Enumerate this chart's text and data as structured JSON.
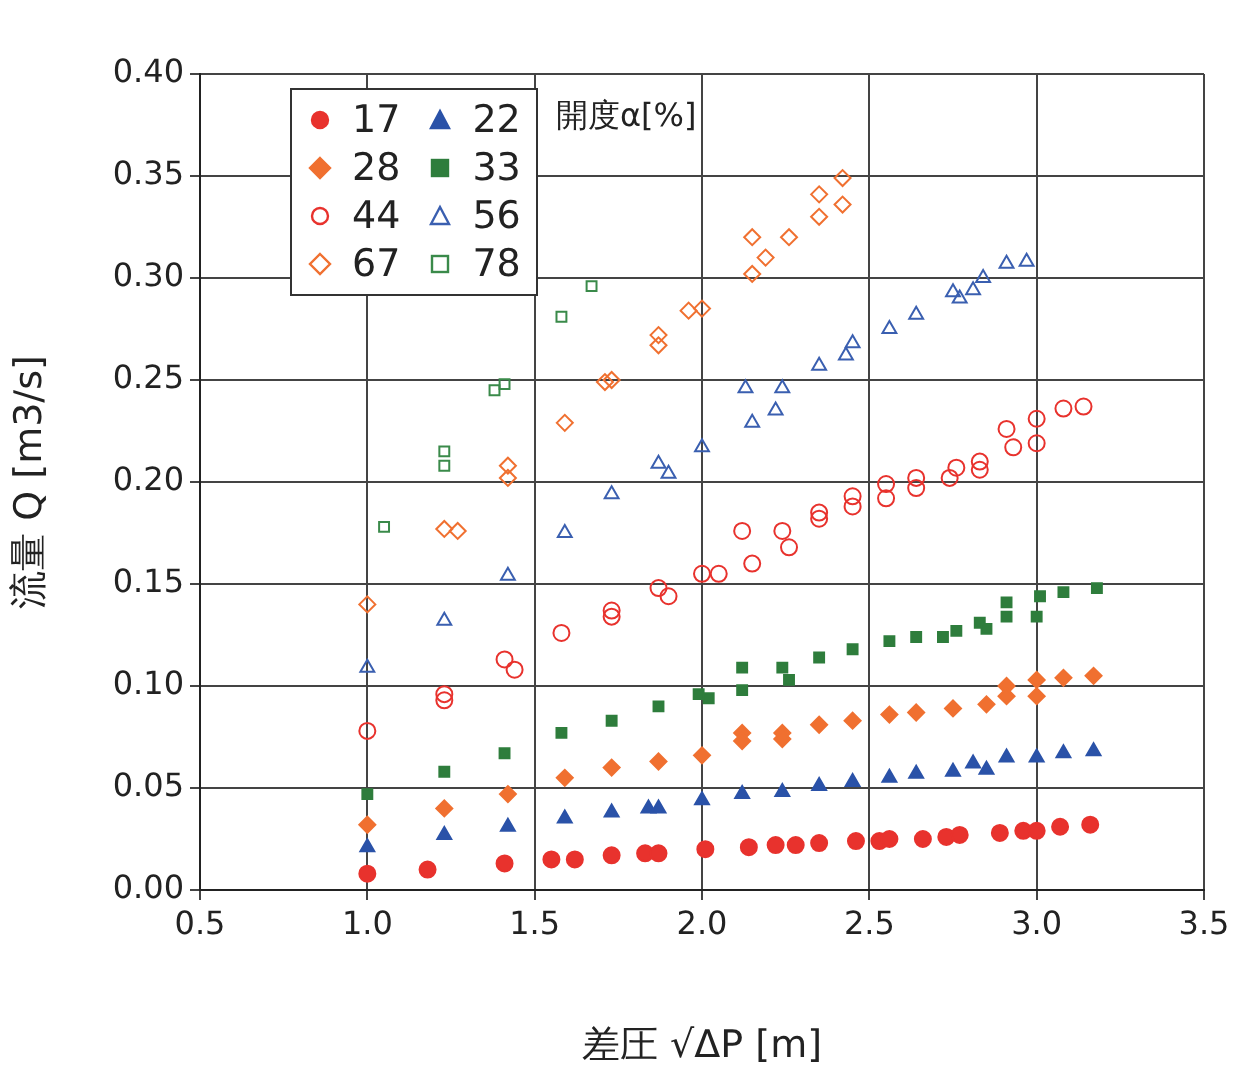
{
  "chart_data": {
    "type": "scatter",
    "xlabel": "差圧 √ΔP [m]",
    "ylabel": "流量 Q [m3/s]",
    "legend_title": "開度α[%]",
    "xlim": [
      0.5,
      3.5
    ],
    "xticks": [
      {
        "value": 0.5,
        "label": "0.5"
      },
      {
        "value": 1,
        "label": "1.0"
      },
      {
        "value": 1.5,
        "label": "1.5"
      },
      {
        "value": 2,
        "label": "2.0"
      },
      {
        "value": 2.5,
        "label": "2.5"
      },
      {
        "value": 3,
        "label": "3.0"
      },
      {
        "value": 3.5,
        "label": "3.5"
      }
    ],
    "ylim": [
      0,
      0.4
    ],
    "yticks": [
      {
        "value": 0,
        "label": "0.00"
      },
      {
        "value": 0.05,
        "label": "0.05"
      },
      {
        "value": 0.1,
        "label": "0.10"
      },
      {
        "value": 0.15,
        "label": "0.15"
      },
      {
        "value": 0.2,
        "label": "0.20"
      },
      {
        "value": 0.25,
        "label": "0.25"
      },
      {
        "value": 0.3,
        "label": "0.30"
      },
      {
        "value": 0.35,
        "label": "0.35"
      },
      {
        "value": 0.4,
        "label": "0.40"
      }
    ],
    "grid": true,
    "legend": "top left",
    "series": [
      {
        "name": "17",
        "color": "#e8322d",
        "marker": "circle",
        "x": [
          1.0,
          1.18,
          1.41,
          1.55,
          1.62,
          1.73,
          1.83,
          1.87,
          2.01,
          2.14,
          2.22,
          2.28,
          2.35,
          2.46,
          2.53,
          2.56,
          2.66,
          2.73,
          2.77,
          2.89,
          2.96,
          3.0,
          3.07,
          3.16
        ],
        "values": [
          0.008,
          0.01,
          0.013,
          0.015,
          0.015,
          0.017,
          0.018,
          0.018,
          0.02,
          0.021,
          0.022,
          0.022,
          0.023,
          0.024,
          0.024,
          0.025,
          0.025,
          0.026,
          0.027,
          0.028,
          0.029,
          0.029,
          0.031,
          0.032
        ]
      },
      {
        "name": "22",
        "color": "#2a52a8",
        "marker": "triangle",
        "x": [
          1.0,
          1.23,
          1.42,
          1.59,
          1.73,
          1.84,
          1.87,
          2.0,
          2.12,
          2.24,
          2.35,
          2.45,
          2.56,
          2.64,
          2.75,
          2.81,
          2.85,
          2.91,
          3.0,
          3.08,
          3.17
        ],
        "values": [
          0.021,
          0.027,
          0.031,
          0.035,
          0.038,
          0.04,
          0.04,
          0.044,
          0.047,
          0.048,
          0.051,
          0.053,
          0.055,
          0.057,
          0.058,
          0.062,
          0.059,
          0.065,
          0.065,
          0.067,
          0.068
        ]
      },
      {
        "name": "28",
        "color": "#f07030",
        "marker": "diamond",
        "x": [
          1.0,
          1.23,
          1.42,
          1.59,
          1.73,
          1.87,
          2.0,
          2.12,
          2.12,
          2.24,
          2.24,
          2.35,
          2.45,
          2.56,
          2.64,
          2.75,
          2.85,
          2.91,
          2.91,
          3.0,
          3.0,
          3.08,
          3.17
        ],
        "values": [
          0.032,
          0.04,
          0.047,
          0.055,
          0.06,
          0.063,
          0.066,
          0.077,
          0.073,
          0.077,
          0.074,
          0.081,
          0.083,
          0.086,
          0.087,
          0.089,
          0.091,
          0.1,
          0.095,
          0.103,
          0.095,
          0.104,
          0.105
        ]
      },
      {
        "name": "33",
        "color": "#2e7d3c",
        "marker": "square",
        "x": [
          1.0,
          1.23,
          1.41,
          1.58,
          1.73,
          1.87,
          1.99,
          2.02,
          2.12,
          2.12,
          2.24,
          2.26,
          2.35,
          2.45,
          2.56,
          2.64,
          2.72,
          2.76,
          2.83,
          2.85,
          2.91,
          2.91,
          3.0,
          3.01,
          3.08,
          3.18
        ],
        "values": [
          0.047,
          0.058,
          0.067,
          0.077,
          0.083,
          0.09,
          0.096,
          0.094,
          0.109,
          0.098,
          0.109,
          0.103,
          0.114,
          0.118,
          0.122,
          0.124,
          0.124,
          0.127,
          0.131,
          0.128,
          0.141,
          0.134,
          0.134,
          0.144,
          0.146,
          0.148
        ]
      },
      {
        "name": "44",
        "color": "#e8322d",
        "marker": "circle",
        "x": [
          1.0,
          1.23,
          1.23,
          1.41,
          1.44,
          1.58,
          1.73,
          1.73,
          1.87,
          1.9,
          2.0,
          2.05,
          2.12,
          2.15,
          2.24,
          2.26,
          2.35,
          2.35,
          2.45,
          2.45,
          2.55,
          2.55,
          2.64,
          2.64,
          2.74,
          2.76,
          2.83,
          2.83,
          2.91,
          2.93,
          3.0,
          3.0,
          3.08,
          3.14
        ],
        "values": [
          0.078,
          0.096,
          0.093,
          0.113,
          0.108,
          0.126,
          0.137,
          0.134,
          0.148,
          0.144,
          0.155,
          0.155,
          0.176,
          0.16,
          0.176,
          0.168,
          0.185,
          0.182,
          0.193,
          0.188,
          0.199,
          0.192,
          0.202,
          0.197,
          0.202,
          0.207,
          0.21,
          0.206,
          0.226,
          0.217,
          0.231,
          0.219,
          0.236,
          0.237
        ]
      },
      {
        "name": "56",
        "color": "#3a5fb0",
        "marker": "triangle",
        "x": [
          1.0,
          1.23,
          1.42,
          1.59,
          1.73,
          1.87,
          1.9,
          2.0,
          2.13,
          2.15,
          2.22,
          2.24,
          2.35,
          2.43,
          2.45,
          2.56,
          2.64,
          2.75,
          2.77,
          2.81,
          2.84,
          2.91,
          2.97
        ],
        "values": [
          0.109,
          0.132,
          0.154,
          0.175,
          0.194,
          0.209,
          0.204,
          0.217,
          0.246,
          0.229,
          0.235,
          0.246,
          0.257,
          0.262,
          0.268,
          0.275,
          0.282,
          0.293,
          0.29,
          0.294,
          0.3,
          0.307,
          0.308
        ]
      },
      {
        "name": "67",
        "color": "#f07030",
        "marker": "diamond",
        "x": [
          1.0,
          1.23,
          1.27,
          1.42,
          1.42,
          1.59,
          1.71,
          1.73,
          1.87,
          1.87,
          1.96,
          2.0,
          2.15,
          2.15,
          2.19,
          2.26,
          2.35,
          2.35,
          2.42,
          2.42
        ],
        "values": [
          0.14,
          0.177,
          0.176,
          0.208,
          0.202,
          0.229,
          0.249,
          0.25,
          0.272,
          0.267,
          0.284,
          0.285,
          0.32,
          0.302,
          0.31,
          0.32,
          0.341,
          0.33,
          0.349,
          0.336
        ]
      },
      {
        "name": "78",
        "color": "#3a8a4a",
        "marker": "square",
        "x": [
          1.05,
          1.23,
          1.23,
          1.38,
          1.41,
          1.58,
          1.67
        ],
        "values": [
          0.178,
          0.215,
          0.208,
          0.245,
          0.248,
          0.281,
          0.296
        ]
      }
    ]
  }
}
